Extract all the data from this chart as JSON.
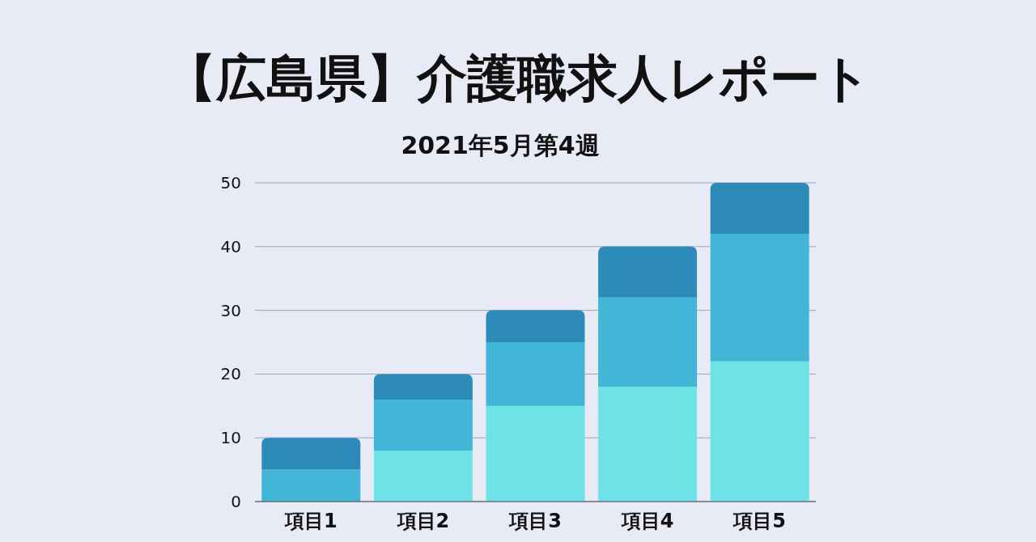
{
  "chart_data": {
    "type": "bar",
    "title": "【広島県】介護職求人レポート",
    "subtitle": "2021年5月第4週",
    "categories": [
      "項目1",
      "項目2",
      "項目3",
      "項目4",
      "項目5"
    ],
    "stacked": true,
    "series": [
      {
        "color": "#6de3e8",
        "values": [
          0,
          8,
          15,
          18,
          22
        ]
      },
      {
        "color": "#41b6d6",
        "values": [
          5,
          8,
          10,
          14,
          20
        ]
      },
      {
        "color": "#2d8bb9",
        "values": [
          5,
          4,
          5,
          8,
          8
        ]
      }
    ],
    "ylim": [
      0,
      50
    ],
    "yticks": [
      0,
      10,
      20,
      30,
      40,
      50
    ],
    "grid": "y"
  }
}
